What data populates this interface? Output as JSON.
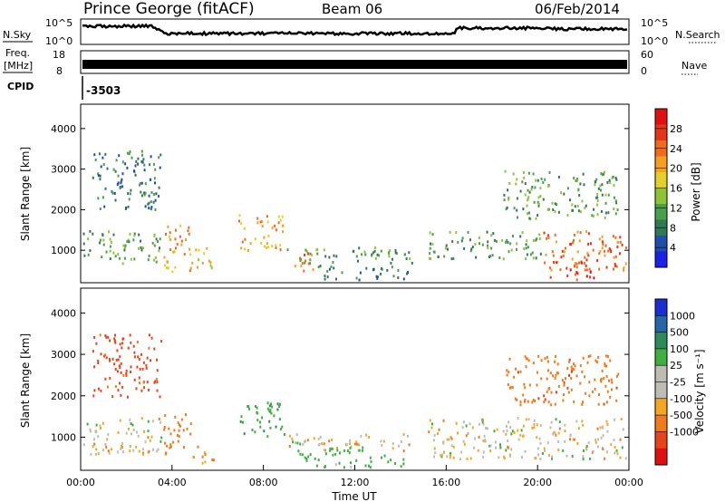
{
  "header": {
    "station": "Prince George (fitACF)",
    "beam": "Beam 06",
    "date": "06/Feb/2014"
  },
  "strips": {
    "nsky_label": "N.Sky",
    "nsearch_label": "N.Search",
    "noise_ticks": [
      "10^5",
      "10^0"
    ],
    "freq_label_1": "Freq.",
    "freq_label_2": "[MHz]",
    "freq_ticks": [
      "18",
      "8"
    ],
    "nave_label": "Nave",
    "nave_ticks": [
      "60",
      "0"
    ],
    "cpid_label": "CPID",
    "cpid_value": "-3503"
  },
  "chart_data": [
    {
      "type": "heatmap",
      "panel": "power",
      "ylabel": "Slant Range [km]",
      "yticks": [
        "1000",
        "2000",
        "3000",
        "4000"
      ],
      "ylim": [
        200,
        4600
      ],
      "xlim": [
        0,
        24
      ],
      "colorbar": {
        "label": "Power [dB]",
        "ticks": [
          "4",
          "8",
          "12",
          "16",
          "20",
          "24",
          "28"
        ],
        "colors": [
          "#1a22e8",
          "#1f4fa8",
          "#2f7a55",
          "#4aa04a",
          "#8fc436",
          "#e4d028",
          "#f7a01f",
          "#f26a1e",
          "#e5361a",
          "#e01010"
        ]
      },
      "regions": [
        {
          "t0": 0.1,
          "t1": 3.6,
          "r0": 700,
          "r1": 1500,
          "level": 12
        },
        {
          "t0": 3.6,
          "t1": 4.8,
          "r0": 500,
          "r1": 1700,
          "level": 20
        },
        {
          "t0": 4.6,
          "t1": 5.8,
          "r0": 600,
          "r1": 1100,
          "level": 16
        },
        {
          "t0": 6.9,
          "t1": 8.9,
          "r0": 1000,
          "r1": 1900,
          "level": 20
        },
        {
          "t0": 8.9,
          "t1": 14.5,
          "r0": 700,
          "r1": 1100,
          "level": 12
        },
        {
          "t0": 9.3,
          "t1": 10.3,
          "r0": 500,
          "r1": 1000,
          "level": 24
        },
        {
          "t0": 10.3,
          "t1": 14.3,
          "r0": 300,
          "r1": 650,
          "level": 8
        },
        {
          "t0": 15.2,
          "t1": 20.2,
          "r0": 800,
          "r1": 1500,
          "level": 12
        },
        {
          "t0": 20.2,
          "t1": 23.9,
          "r0": 500,
          "r1": 1500,
          "level": 24
        },
        {
          "t0": 20.5,
          "t1": 22.5,
          "r0": 300,
          "r1": 800,
          "level": 28
        },
        {
          "t0": 18.5,
          "t1": 23.5,
          "r0": 1800,
          "r1": 3000,
          "level": 12
        },
        {
          "t0": 0.5,
          "t1": 3.5,
          "r0": 2000,
          "r1": 3500,
          "level": 8
        }
      ]
    },
    {
      "type": "heatmap",
      "panel": "velocity",
      "xlabel": "Time UT",
      "ylabel": "Slant Range [km]",
      "yticks": [
        "1000",
        "2000",
        "3000",
        "4000"
      ],
      "xticks": [
        "00:00",
        "04:00",
        "08:00",
        "12:00",
        "16:00",
        "20:00",
        "00:00"
      ],
      "ylim": [
        200,
        4600
      ],
      "xlim": [
        0,
        24
      ],
      "colorbar": {
        "label": "Velocity [m s⁻¹]",
        "ticks": [
          "1000",
          "500",
          "100",
          "25",
          "-25",
          "-100",
          "-500",
          "-1000"
        ],
        "colors": [
          "#1a2fd0",
          "#2466a8",
          "#2f8a5a",
          "#3fb040",
          "#bdbdb3",
          "#bdbdb3",
          "#f5a623",
          "#f07a1c",
          "#e8441a",
          "#e01010"
        ]
      },
      "regions": [
        {
          "t0": 0.1,
          "t1": 3.6,
          "r0": 600,
          "r1": 1500,
          "value": 0
        },
        {
          "t0": 3.6,
          "t1": 4.8,
          "r0": 600,
          "r1": 1700,
          "value": -300
        },
        {
          "t0": 4.8,
          "t1": 5.8,
          "r0": 400,
          "r1": 800,
          "value": -150
        },
        {
          "t0": 6.9,
          "t1": 8.9,
          "r0": 1000,
          "r1": 1900,
          "value": 400
        },
        {
          "t0": 8.9,
          "t1": 14.5,
          "r0": 700,
          "r1": 1100,
          "value": 0
        },
        {
          "t0": 9.3,
          "t1": 12.5,
          "r0": 300,
          "r1": 800,
          "value": 200
        },
        {
          "t0": 12.5,
          "t1": 14.3,
          "r0": 300,
          "r1": 600,
          "value": 300
        },
        {
          "t0": 15.2,
          "t1": 23.9,
          "r0": 500,
          "r1": 1500,
          "value": 0
        },
        {
          "t0": 18.5,
          "t1": 23.5,
          "r0": 1800,
          "r1": 3000,
          "value": -400
        },
        {
          "t0": 0.5,
          "t1": 3.5,
          "r0": 2000,
          "r1": 3500,
          "value": -600
        }
      ]
    }
  ]
}
